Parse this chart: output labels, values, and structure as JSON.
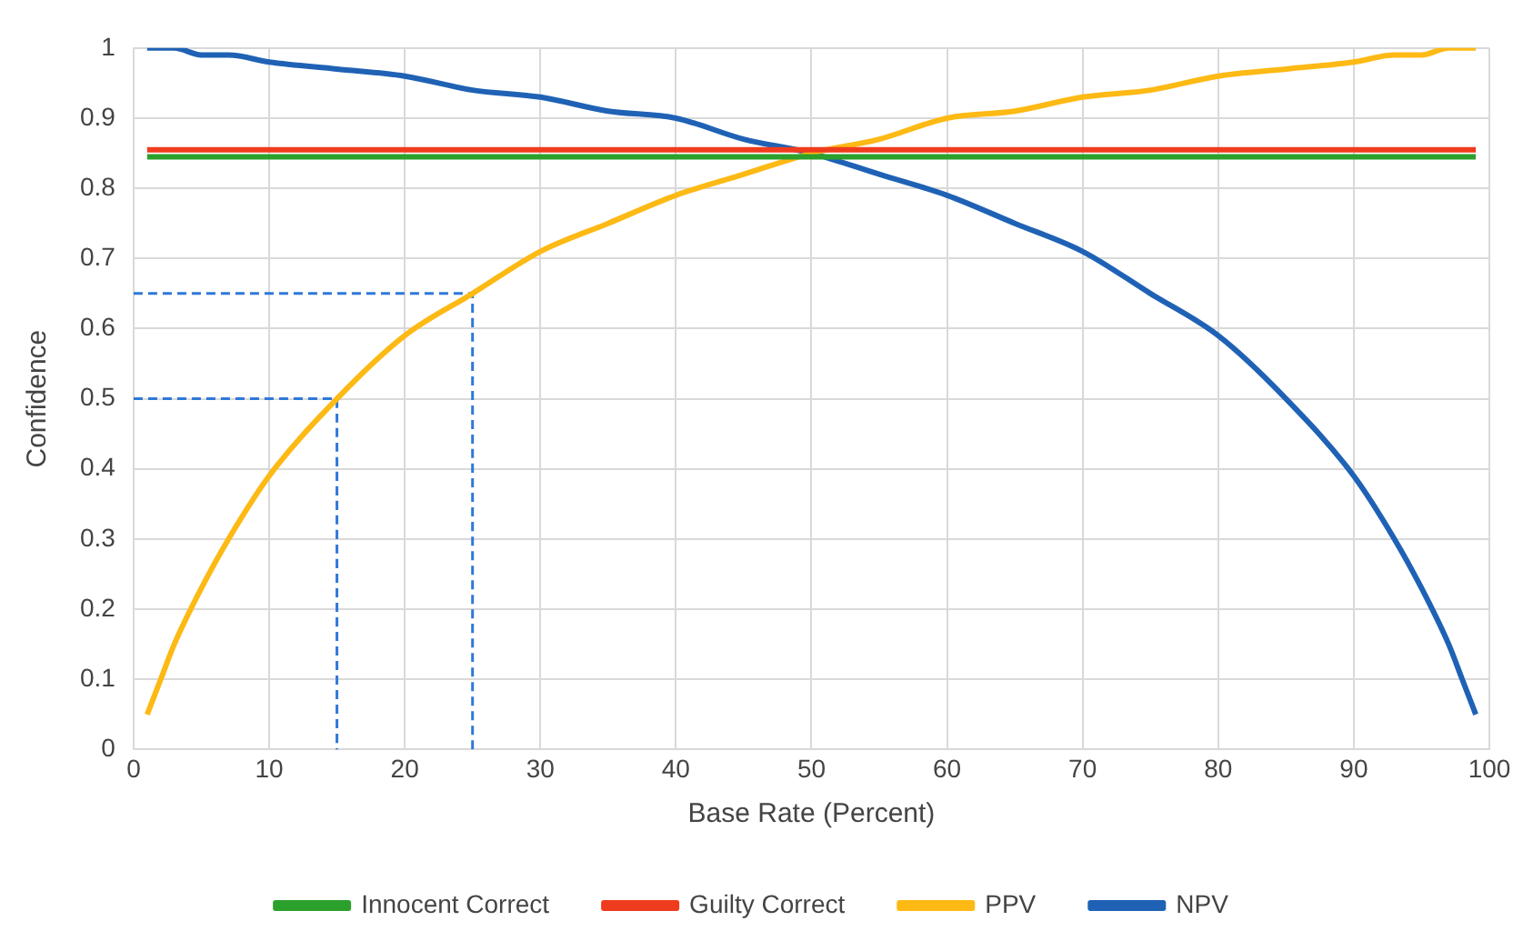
{
  "chart_data": {
    "type": "line",
    "xlabel": "Base Rate (Percent)",
    "ylabel": "Confidence",
    "xlim": [
      0,
      100
    ],
    "xticks": [
      0,
      10,
      20,
      30,
      40,
      50,
      60,
      70,
      80,
      90,
      100
    ],
    "ylim": [
      0,
      1
    ],
    "yticks": [
      0,
      0.1,
      0.2,
      0.3,
      0.4,
      0.5,
      0.6,
      0.7,
      0.8,
      0.9,
      1
    ],
    "grid": true,
    "legend": "bottom",
    "marker": "none",
    "line_style": "solid",
    "series": [
      {
        "name": "Innocent Correct",
        "color": "#2ca02c",
        "x": [
          1,
          99
        ],
        "values": [
          0.845,
          0.845
        ]
      },
      {
        "name": "Guilty Correct",
        "color": "#f03c1e",
        "x": [
          1,
          99
        ],
        "values": [
          0.855,
          0.855
        ]
      },
      {
        "name": "PPV",
        "color": "#fdb914",
        "x": [
          1,
          2,
          3,
          5,
          7,
          10,
          15,
          20,
          25,
          30,
          35,
          40,
          45,
          50,
          55,
          60,
          65,
          70,
          75,
          80,
          85,
          90,
          93,
          95,
          97,
          98,
          99
        ],
        "values": [
          0.05,
          0.1,
          0.15,
          0.23,
          0.3,
          0.39,
          0.5,
          0.59,
          0.65,
          0.71,
          0.75,
          0.79,
          0.82,
          0.85,
          0.87,
          0.9,
          0.91,
          0.93,
          0.94,
          0.96,
          0.97,
          0.98,
          0.99,
          0.99,
          1,
          1,
          1
        ]
      },
      {
        "name": "NPV",
        "color": "#1f62b5",
        "x": [
          1,
          2,
          3,
          5,
          7,
          10,
          15,
          20,
          25,
          30,
          35,
          40,
          45,
          50,
          55,
          60,
          65,
          70,
          75,
          80,
          85,
          90,
          93,
          95,
          97,
          98,
          99
        ],
        "values": [
          1,
          1,
          1,
          0.99,
          0.99,
          0.98,
          0.97,
          0.96,
          0.94,
          0.93,
          0.91,
          0.9,
          0.87,
          0.85,
          0.82,
          0.79,
          0.75,
          0.71,
          0.65,
          0.59,
          0.5,
          0.39,
          0.3,
          0.23,
          0.15,
          0.1,
          0.05
        ]
      },
      {
        "color": "#2f78d8",
        "line_style": "dashed",
        "x": [
          0,
          15,
          15
        ],
        "values": [
          0.5,
          0.5,
          0
        ]
      },
      {
        "color": "#2f78d8",
        "line_style": "dashed",
        "x": [
          0,
          25,
          25
        ],
        "values": [
          0.65,
          0.65,
          0
        ]
      }
    ]
  }
}
